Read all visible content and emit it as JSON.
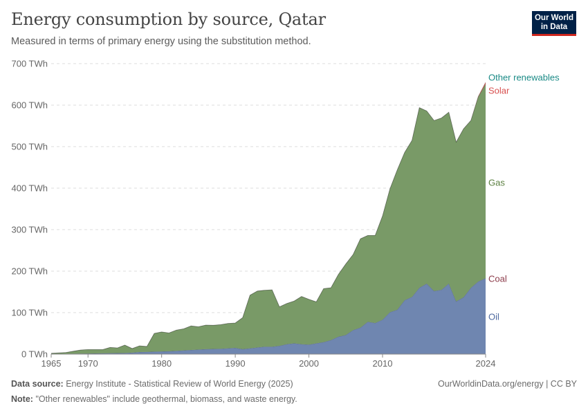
{
  "header": {
    "title": "Energy consumption by source, Qatar",
    "subtitle": "Measured in terms of primary energy using the substitution method."
  },
  "logo": {
    "line1": "Our World",
    "line2": "in Data"
  },
  "footer": {
    "source_label": "Data source:",
    "source_text": "Energy Institute - Statistical Review of World Energy (2025)",
    "license": "OurWorldinData.org/energy | CC BY",
    "note_label": "Note:",
    "note_text": "\"Other renewables\" include geothermal, biomass, and waste energy."
  },
  "colors": {
    "oil": "#6f86b0",
    "gas": "#799a67",
    "coal": "#8c3b4a",
    "solar": "#d8504f",
    "other_renewables": "#1a8a86",
    "oil_label": "#4f6aa0",
    "gas_label": "#5b8040",
    "coal_label": "#8c3b4a",
    "grid": "#dddddd",
    "tick_text": "#666666"
  },
  "chart_data": {
    "type": "area",
    "stacked": true,
    "x": [
      1965,
      1966,
      1967,
      1968,
      1969,
      1970,
      1971,
      1972,
      1973,
      1974,
      1975,
      1976,
      1977,
      1978,
      1979,
      1980,
      1981,
      1982,
      1983,
      1984,
      1985,
      1986,
      1987,
      1988,
      1989,
      1990,
      1991,
      1992,
      1993,
      1994,
      1995,
      1996,
      1997,
      1998,
      1999,
      2000,
      2001,
      2002,
      2003,
      2004,
      2005,
      2006,
      2007,
      2008,
      2009,
      2010,
      2011,
      2012,
      2013,
      2014,
      2015,
      2016,
      2017,
      2018,
      2019,
      2020,
      2021,
      2022,
      2023,
      2024
    ],
    "x_ticks": [
      1965,
      1970,
      1980,
      1990,
      2000,
      2010,
      2024
    ],
    "y_ticks": [
      0,
      100,
      200,
      300,
      400,
      500,
      600,
      700
    ],
    "y_tick_labels": [
      "0 TWh",
      "100 TWh",
      "200 TWh",
      "300 TWh",
      "400 TWh",
      "500 TWh",
      "600 TWh",
      "700 TWh"
    ],
    "ylim": [
      0,
      700
    ],
    "xlim": [
      1965,
      2024
    ],
    "grid": true,
    "legend": "right-labels",
    "series": [
      {
        "name": "Oil",
        "key": "oil",
        "values": [
          0.5,
          0.6,
          0.8,
          1,
          1.2,
          1.5,
          1.7,
          2,
          2.3,
          2.5,
          2.8,
          3.5,
          5,
          5.5,
          6,
          6.5,
          7,
          8,
          9,
          10,
          11,
          12,
          12.5,
          13,
          14,
          15,
          12,
          14,
          16,
          18,
          18,
          20,
          24,
          26,
          24,
          23,
          26,
          29,
          34,
          42,
          46,
          58,
          64,
          78,
          75,
          83,
          101,
          107,
          130,
          138,
          160,
          170,
          152,
          155,
          170,
          127,
          137,
          160,
          175,
          183
        ]
      },
      {
        "name": "Gas",
        "key": "gas",
        "values": [
          1.5,
          2.4,
          3.2,
          6,
          8.8,
          9.5,
          9.3,
          9,
          14,
          12.5,
          19,
          10,
          15,
          13,
          44,
          47,
          44,
          50,
          52,
          58,
          55,
          58,
          57,
          58,
          60,
          60,
          76,
          128,
          136,
          136,
          137,
          94,
          98,
          102,
          115,
          109,
          100,
          129,
          126,
          150,
          171,
          182,
          214,
          208,
          211,
          250,
          297,
          337,
          356,
          377,
          434,
          416,
          411,
          414,
          413,
          384,
          406,
          403,
          445,
          468
        ]
      },
      {
        "name": "Coal",
        "key": "coal",
        "values": [
          0,
          0,
          0,
          0,
          0,
          0,
          0,
          0,
          0,
          0,
          0,
          0,
          0,
          0,
          0,
          0,
          0,
          0,
          0,
          0,
          0,
          0,
          0,
          0,
          0,
          0,
          0,
          0,
          0,
          0,
          0,
          0,
          0,
          0,
          0,
          0,
          0,
          0,
          0,
          0,
          0,
          0,
          0,
          0,
          0,
          0,
          0,
          0,
          0,
          0,
          0,
          0,
          0,
          0,
          0,
          0,
          0,
          0,
          0,
          0
        ]
      },
      {
        "name": "Solar",
        "key": "solar",
        "values": [
          0,
          0,
          0,
          0,
          0,
          0,
          0,
          0,
          0,
          0,
          0,
          0,
          0,
          0,
          0,
          0,
          0,
          0,
          0,
          0,
          0,
          0,
          0,
          0,
          0,
          0,
          0,
          0,
          0,
          0,
          0,
          0,
          0,
          0,
          0,
          0,
          0,
          0,
          0,
          0,
          0,
          0,
          0,
          0,
          0,
          0,
          0,
          0,
          0,
          0,
          0,
          0,
          0,
          0,
          0,
          0,
          0,
          0,
          1,
          4
        ]
      },
      {
        "name": "Other renewables",
        "key": "other_renewables",
        "values": [
          0,
          0,
          0,
          0,
          0,
          0,
          0,
          0,
          0,
          0,
          0,
          0,
          0,
          0,
          0,
          0,
          0,
          0,
          0,
          0,
          0,
          0,
          0,
          0,
          0,
          0,
          0,
          0,
          0,
          0,
          0,
          0,
          0,
          0,
          0,
          0,
          0,
          0,
          0,
          0,
          0,
          0,
          0,
          0,
          0,
          0,
          0,
          0,
          0,
          0,
          0,
          0,
          0,
          0,
          0,
          0,
          0,
          0,
          0,
          0
        ]
      }
    ]
  }
}
